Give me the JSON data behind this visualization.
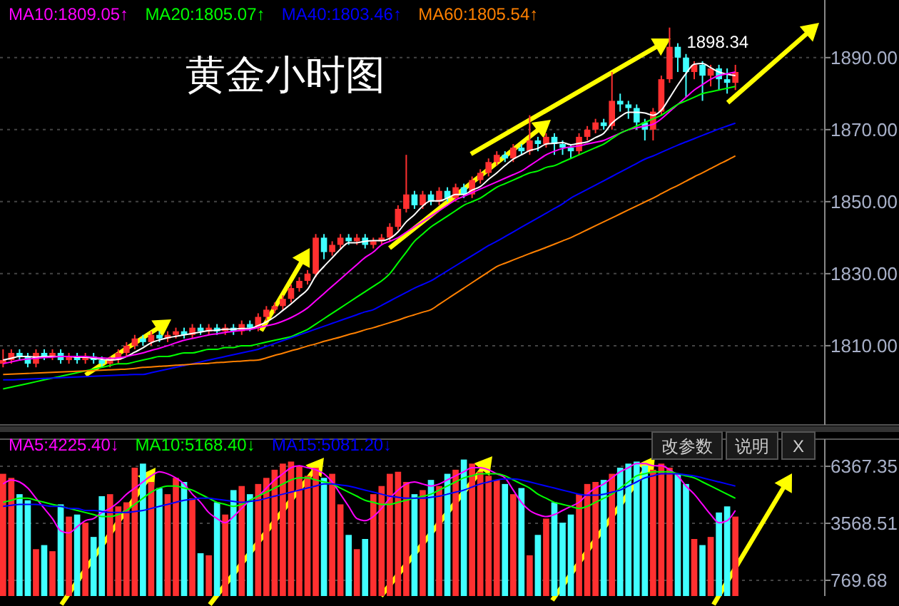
{
  "chart_data": [
    {
      "type": "candlestick",
      "title": "黄金小时图",
      "categories": [
        null,
        null,
        null,
        null,
        null,
        null,
        null,
        null,
        null,
        null,
        null,
        null,
        null,
        null,
        null,
        null,
        null,
        null,
        null,
        null,
        null,
        null,
        null,
        null,
        null,
        null,
        null,
        null,
        null,
        null,
        null,
        null,
        null,
        null,
        null,
        null,
        null,
        null,
        null,
        null,
        null,
        null,
        null,
        null,
        null,
        null,
        null,
        null,
        null,
        null,
        null,
        null,
        null,
        null,
        null,
        null,
        null,
        null,
        null,
        null,
        null,
        null,
        null,
        null,
        null,
        null,
        null,
        null,
        null,
        null,
        null,
        null,
        null,
        null,
        null,
        null,
        null,
        null,
        null,
        null,
        null,
        null,
        null,
        null,
        null,
        null,
        null,
        null,
        null,
        null
      ],
      "ohlc": [
        [
          1805,
          1809,
          1804,
          1806
        ],
        [
          1806,
          1809,
          1805,
          1808
        ],
        [
          1808,
          1809,
          1806,
          1807
        ],
        [
          1807,
          1808,
          1804,
          1805
        ],
        [
          1805,
          1809,
          1804,
          1808
        ],
        [
          1808,
          1809,
          1806,
          1807
        ],
        [
          1807,
          1809,
          1806,
          1808
        ],
        [
          1808,
          1809,
          1805,
          1806
        ],
        [
          1806,
          1808,
          1805,
          1807
        ],
        [
          1807,
          1808,
          1805,
          1806
        ],
        [
          1806,
          1808,
          1805,
          1807
        ],
        [
          1807,
          1808,
          1805,
          1806
        ],
        [
          1806,
          1807,
          1804,
          1805
        ],
        [
          1805,
          1807,
          1804,
          1806
        ],
        [
          1806,
          1809,
          1805,
          1808
        ],
        [
          1808,
          1811,
          1807,
          1810
        ],
        [
          1810,
          1813,
          1809,
          1812
        ],
        [
          1812,
          1813,
          1810,
          1811
        ],
        [
          1811,
          1814,
          1810,
          1813
        ],
        [
          1813,
          1814,
          1811,
          1812
        ],
        [
          1812,
          1814,
          1811,
          1813
        ],
        [
          1813,
          1815,
          1812,
          1814
        ],
        [
          1814,
          1815,
          1812,
          1813
        ],
        [
          1813,
          1816,
          1812,
          1815
        ],
        [
          1815,
          1816,
          1813,
          1814
        ],
        [
          1814,
          1816,
          1813,
          1815
        ],
        [
          1815,
          1816,
          1813,
          1814
        ],
        [
          1814,
          1816,
          1813,
          1815
        ],
        [
          1815,
          1816,
          1813,
          1814
        ],
        [
          1814,
          1817,
          1813,
          1816
        ],
        [
          1816,
          1817,
          1814,
          1815
        ],
        [
          1815,
          1819,
          1814,
          1818
        ],
        [
          1818,
          1821,
          1817,
          1820
        ],
        [
          1820,
          1822,
          1819,
          1821
        ],
        [
          1821,
          1824,
          1820,
          1823
        ],
        [
          1823,
          1827,
          1822,
          1826
        ],
        [
          1826,
          1829,
          1825,
          1828
        ],
        [
          1828,
          1831,
          1827,
          1830
        ],
        [
          1830,
          1841,
          1829,
          1840
        ],
        [
          1840,
          1841,
          1834,
          1836
        ],
        [
          1836,
          1839,
          1835,
          1838
        ],
        [
          1838,
          1841,
          1837,
          1840
        ],
        [
          1840,
          1841,
          1838,
          1839
        ],
        [
          1839,
          1841,
          1838,
          1840
        ],
        [
          1840,
          1841,
          1837,
          1838
        ],
        [
          1838,
          1840,
          1837,
          1839
        ],
        [
          1839,
          1841,
          1838,
          1840
        ],
        [
          1840,
          1844,
          1839,
          1843
        ],
        [
          1843,
          1849,
          1842,
          1848
        ],
        [
          1848,
          1863,
          1847,
          1852
        ],
        [
          1852,
          1853,
          1848,
          1849
        ],
        [
          1849,
          1853,
          1848,
          1852
        ],
        [
          1852,
          1853,
          1849,
          1850
        ],
        [
          1850,
          1854,
          1849,
          1853
        ],
        [
          1853,
          1854,
          1850,
          1851
        ],
        [
          1851,
          1855,
          1850,
          1854
        ],
        [
          1854,
          1855,
          1851,
          1852
        ],
        [
          1852,
          1857,
          1851,
          1856
        ],
        [
          1856,
          1859,
          1855,
          1858
        ],
        [
          1858,
          1862,
          1857,
          1861
        ],
        [
          1861,
          1864,
          1860,
          1863
        ],
        [
          1863,
          1864,
          1861,
          1862
        ],
        [
          1862,
          1866,
          1861,
          1865
        ],
        [
          1865,
          1866,
          1863,
          1864
        ],
        [
          1864,
          1874,
          1863,
          1867
        ],
        [
          1867,
          1868,
          1864,
          1866
        ],
        [
          1866,
          1869,
          1865,
          1868
        ],
        [
          1868,
          1869,
          1863,
          1866
        ],
        [
          1866,
          1867,
          1863,
          1865
        ],
        [
          1865,
          1866,
          1862,
          1864
        ],
        [
          1864,
          1869,
          1863,
          1868
        ],
        [
          1868,
          1871,
          1867,
          1870
        ],
        [
          1870,
          1873,
          1869,
          1872
        ],
        [
          1872,
          1873,
          1870,
          1871
        ],
        [
          1871,
          1886,
          1870,
          1878
        ],
        [
          1878,
          1880,
          1875,
          1877
        ],
        [
          1877,
          1878,
          1873,
          1876
        ],
        [
          1876,
          1877,
          1870,
          1872
        ],
        [
          1872,
          1873,
          1867,
          1870
        ],
        [
          1870,
          1876,
          1867,
          1875
        ],
        [
          1875,
          1885,
          1874,
          1884
        ],
        [
          1884,
          1898.34,
          1883,
          1893
        ],
        [
          1893,
          1894,
          1886,
          1890
        ],
        [
          1890,
          1891,
          1879,
          1886
        ],
        [
          1886,
          1889,
          1884,
          1888
        ],
        [
          1888,
          1889,
          1878,
          1885
        ],
        [
          1885,
          1888,
          1882,
          1887
        ],
        [
          1887,
          1888,
          1881,
          1884
        ],
        [
          1884,
          1887,
          1880,
          1883
        ],
        [
          1883,
          1888,
          1881,
          1886
        ]
      ],
      "colors": [
        "#ff3030",
        "#ff3030",
        "#40ffff",
        "#40ffff",
        "#ff3030",
        "#40ffff",
        "#ff3030",
        "#40ffff",
        "#ff3030",
        "#40ffff",
        "#ff3030",
        "#40ffff",
        "#40ffff",
        "#ff3030",
        "#ff3030",
        "#ff3030",
        "#ff3030",
        "#40ffff",
        "#ff3030",
        "#40ffff",
        "#ff3030",
        "#ff3030",
        "#40ffff",
        "#ff3030",
        "#40ffff",
        "#ff3030",
        "#40ffff",
        "#ff3030",
        "#40ffff",
        "#ff3030",
        "#40ffff",
        "#ff3030",
        "#ff3030",
        "#ff3030",
        "#ff3030",
        "#ff3030",
        "#ff3030",
        "#ff3030",
        "#ff3030",
        "#40ffff",
        "#ff3030",
        "#ff3030",
        "#40ffff",
        "#ff3030",
        "#40ffff",
        "#ff3030",
        "#ff3030",
        "#ff3030",
        "#ff3030",
        "#ff3030",
        "#40ffff",
        "#ff3030",
        "#40ffff",
        "#ff3030",
        "#40ffff",
        "#ff3030",
        "#40ffff",
        "#ff3030",
        "#ff3030",
        "#ff3030",
        "#ff3030",
        "#40ffff",
        "#ff3030",
        "#40ffff",
        "#ff3030",
        "#40ffff",
        "#ff3030",
        "#40ffff",
        "#40ffff",
        "#40ffff",
        "#ff3030",
        "#ff3030",
        "#ff3030",
        "#40ffff",
        "#ff3030",
        "#40ffff",
        "#40ffff",
        "#40ffff",
        "#40ffff",
        "#ff3030",
        "#ff3030",
        "#ff3030",
        "#40ffff",
        "#40ffff",
        "#ff3030",
        "#40ffff",
        "#ff3030",
        "#40ffff",
        "#40ffff",
        "#ff3030"
      ],
      "series": [
        {
          "type": "line",
          "color": "#ffffff",
          "values": [
            1806,
            1806.5,
            1807,
            1807,
            1806.8,
            1807,
            1807,
            1807,
            1807,
            1806.8,
            1806.8,
            1806.5,
            1806.2,
            1806,
            1806.2,
            1807,
            1808.2,
            1809.4,
            1810.8,
            1811.6,
            1812.2,
            1812.6,
            1813,
            1813.4,
            1813.8,
            1814.2,
            1814.3,
            1814.6,
            1814.6,
            1814.8,
            1814.8,
            1815.6,
            1816.6,
            1818,
            1819.8,
            1821.6,
            1823.6,
            1825.6,
            1829.4,
            1832,
            1834.4,
            1836.8,
            1838.6,
            1838.6,
            1839,
            1839.2,
            1839.2,
            1839.8,
            1841.6,
            1844.4,
            1846.4,
            1848.8,
            1850.2,
            1850.2,
            1851,
            1852,
            1852,
            1853.2,
            1854.2,
            1856.2,
            1858,
            1860,
            1861.8,
            1863,
            1864.2,
            1864.8,
            1866,
            1866.2,
            1866.4,
            1865.8,
            1866.2,
            1866.6,
            1867.8,
            1869,
            1871.8,
            1873.6,
            1874.8,
            1874.8,
            1874.6,
            1874,
            1875.4,
            1878.8,
            1882.4,
            1885.6,
            1888.2,
            1888.4,
            1887.2,
            1886,
            1885.4,
            1885
          ]
        },
        {
          "type": "line",
          "name": "MA10:1809.05↑",
          "color": "#ff00ff",
          "values": [
            1805,
            1805.5,
            1806,
            1806.3,
            1806.5,
            1806.7,
            1806.8,
            1807,
            1807,
            1807,
            1807,
            1806.8,
            1806.6,
            1806.5,
            1806.6,
            1807,
            1807.5,
            1808,
            1808.7,
            1809.3,
            1810,
            1810.8,
            1811.5,
            1812,
            1812.5,
            1813,
            1813.3,
            1813.7,
            1814,
            1814.3,
            1814.5,
            1815,
            1815.5,
            1816,
            1816.8,
            1817.8,
            1819,
            1820.5,
            1822.5,
            1824.5,
            1826.5,
            1828.5,
            1830.5,
            1832.5,
            1834.5,
            1836,
            1838,
            1839,
            1840,
            1841.5,
            1843,
            1844.5,
            1846,
            1847.5,
            1849,
            1850.5,
            1851.5,
            1852.5,
            1853.5,
            1854.5,
            1855.5,
            1856.5,
            1857.5,
            1858.5,
            1860,
            1861.5,
            1863,
            1864,
            1864.8,
            1865.2,
            1865.5,
            1866,
            1866.5,
            1867,
            1868,
            1869,
            1870,
            1870.5,
            1871,
            1871.5,
            1873,
            1875,
            1877,
            1879,
            1881,
            1882.5,
            1884,
            1885,
            1885.5,
            1886
          ]
        },
        {
          "type": "line",
          "name": "MA20:1805.07↑",
          "color": "#00ff00",
          "values": [
            1798,
            1798.5,
            1799,
            1799.5,
            1800,
            1800.5,
            1801,
            1801.5,
            1802,
            1802.5,
            1803,
            1803.5,
            1804,
            1804.5,
            1805,
            1805,
            1805.5,
            1806,
            1806.5,
            1807,
            1807,
            1807.5,
            1808,
            1808,
            1808.5,
            1809,
            1809,
            1809.5,
            1809.5,
            1810,
            1810,
            1810.5,
            1811,
            1811.5,
            1812,
            1812.5,
            1813.5,
            1814.5,
            1816,
            1817.5,
            1819,
            1820.5,
            1822,
            1823.5,
            1825,
            1826.5,
            1828,
            1830,
            1833,
            1836,
            1839,
            1841,
            1843,
            1844.5,
            1846,
            1847.5,
            1849,
            1850,
            1851,
            1852.5,
            1854,
            1855,
            1856,
            1857,
            1858,
            1858.5,
            1859.5,
            1860,
            1861,
            1862,
            1863,
            1864,
            1865,
            1866,
            1867.5,
            1869,
            1870,
            1871,
            1872,
            1873,
            1874,
            1875.5,
            1877,
            1878,
            1879,
            1880,
            1880.5,
            1881,
            1881.5,
            1882
          ]
        },
        {
          "type": "line",
          "name": "MA40:1803.46↑",
          "color": "#0000ff",
          "values": [
            1800.5,
            1800.5,
            1800.6,
            1800.7,
            1800.8,
            1800.9,
            1801,
            1801.1,
            1801.2,
            1801.3,
            1801.4,
            1801.5,
            1801.6,
            1801.7,
            1801.8,
            1801.9,
            1802,
            1802,
            1802.5,
            1803,
            1803.5,
            1804,
            1804.5,
            1805,
            1805.5,
            1806,
            1806.5,
            1807,
            1807.5,
            1808,
            1808.5,
            1809,
            1809.8,
            1810.6,
            1811.4,
            1812.2,
            1813,
            1813.8,
            1814.6,
            1815.4,
            1816.2,
            1817,
            1817.8,
            1818.6,
            1819.4,
            1820,
            1821.2,
            1822.4,
            1823.6,
            1824.8,
            1826,
            1827,
            1828,
            1829.4,
            1830.8,
            1832.2,
            1833.6,
            1835,
            1836.4,
            1837.8,
            1839,
            1840.3,
            1841.6,
            1842.9,
            1844.2,
            1845.5,
            1846.8,
            1848.1,
            1849.4,
            1851,
            1852.2,
            1853.4,
            1854.6,
            1855.8,
            1857,
            1858.2,
            1859.4,
            1860.6,
            1861.8,
            1862.7,
            1863.7,
            1864.7,
            1865.7,
            1866.6,
            1867.5,
            1868.4,
            1869.3,
            1870.2,
            1871,
            1871.8
          ]
        },
        {
          "type": "line",
          "name": "MA60:1805.54↑",
          "color": "#ff8000",
          "values": [
            1802,
            1802.1,
            1802.2,
            1802.3,
            1802.4,
            1802.5,
            1802.6,
            1802.7,
            1802.8,
            1802.9,
            1803,
            1803.1,
            1803.2,
            1803.3,
            1803.4,
            1803.5,
            1803.7,
            1804,
            1804.1,
            1804.3,
            1804.4,
            1804.6,
            1804.7,
            1804.9,
            1805,
            1805.1,
            1805.3,
            1805.4,
            1805.6,
            1805.7,
            1805.9,
            1806,
            1806.6,
            1807.3,
            1807.9,
            1808.6,
            1809.2,
            1809.9,
            1810.5,
            1811.2,
            1811.8,
            1812.4,
            1813.1,
            1813.7,
            1814.4,
            1815,
            1815.7,
            1816.4,
            1817.1,
            1817.9,
            1818.6,
            1819.3,
            1820,
            1821.5,
            1823,
            1824.5,
            1826,
            1827.5,
            1829,
            1830.5,
            1832,
            1832.9,
            1833.8,
            1834.7,
            1835.6,
            1836.4,
            1837.3,
            1838.2,
            1839.1,
            1840,
            1841.1,
            1842.2,
            1843.3,
            1844.4,
            1845.5,
            1846.6,
            1847.7,
            1848.8,
            1849.9,
            1851,
            1852.2,
            1853.4,
            1854.5,
            1855.7,
            1856.9,
            1858,
            1859.2,
            1860.4,
            1861.5,
            1862.7
          ]
        }
      ],
      "ylim": [
        1788,
        1906
      ],
      "yticks": [
        {
          "value": 1810,
          "label": "1810.00"
        },
        {
          "value": 1830,
          "label": "1830.00"
        },
        {
          "value": 1850,
          "label": "1850.00"
        },
        {
          "value": 1870,
          "label": "1870.00"
        },
        {
          "value": 1890,
          "label": "1890.00"
        }
      ],
      "grid": "y",
      "legend": "top left",
      "annotations": [
        "1898.34"
      ]
    },
    {
      "type": "bar",
      "categories": [
        null,
        null,
        null,
        null,
        null,
        null,
        null,
        null,
        null,
        null,
        null,
        null,
        null,
        null,
        null,
        null,
        null,
        null,
        null,
        null,
        null,
        null,
        null,
        null,
        null,
        null,
        null,
        null,
        null,
        null,
        null,
        null,
        null,
        null,
        null,
        null,
        null,
        null,
        null,
        null,
        null,
        null,
        null,
        null,
        null,
        null,
        null,
        null,
        null,
        null,
        null,
        null,
        null,
        null,
        null,
        null,
        null,
        null,
        null,
        null,
        null,
        null,
        null,
        null,
        null,
        null,
        null,
        null,
        null,
        null,
        null,
        null,
        null,
        null,
        null,
        null,
        null,
        null,
        null,
        null,
        null,
        null,
        null,
        null,
        null,
        null,
        null,
        null,
        null,
        null
      ],
      "values": [
        6000,
        5800,
        5000,
        4700,
        2300,
        2500,
        2200,
        4500,
        3900,
        4000,
        3600,
        2900,
        4900,
        5000,
        4400,
        4600,
        6300,
        6500,
        5600,
        5300,
        5000,
        5800,
        5600,
        4800,
        2100,
        2000,
        4600,
        4000,
        5200,
        5400,
        5000,
        5500,
        5800,
        6200,
        6500,
        6600,
        6400,
        5900,
        6300,
        5800,
        6000,
        4500,
        3000,
        2300,
        2800,
        5000,
        5400,
        6000,
        6100,
        5600,
        5000,
        5200,
        5700,
        5400,
        6000,
        6200,
        6700,
        6500,
        6100,
        5900,
        5700,
        5500,
        5000,
        5300,
        2000,
        3000,
        3800,
        4600,
        3600,
        4000,
        5000,
        5500,
        5600,
        5700,
        6000,
        6300,
        6500,
        6600,
        6400,
        6200,
        6500,
        6300,
        6000,
        5500,
        2800,
        2500,
        2900,
        4100,
        4400,
        3900
      ],
      "colors": [
        "#ff3030",
        "#ff3030",
        "#40ffff",
        "#40ffff",
        "#ff3030",
        "#40ffff",
        "#ff3030",
        "#40ffff",
        "#ff3030",
        "#40ffff",
        "#ff3030",
        "#40ffff",
        "#40ffff",
        "#ff3030",
        "#ff3030",
        "#ff3030",
        "#ff3030",
        "#40ffff",
        "#ff3030",
        "#40ffff",
        "#ff3030",
        "#ff3030",
        "#40ffff",
        "#ff3030",
        "#40ffff",
        "#ff3030",
        "#40ffff",
        "#ff3030",
        "#40ffff",
        "#ff3030",
        "#40ffff",
        "#ff3030",
        "#ff3030",
        "#ff3030",
        "#ff3030",
        "#ff3030",
        "#ff3030",
        "#ff3030",
        "#ff3030",
        "#40ffff",
        "#ff3030",
        "#ff3030",
        "#40ffff",
        "#ff3030",
        "#40ffff",
        "#ff3030",
        "#ff3030",
        "#ff3030",
        "#ff3030",
        "#ff3030",
        "#40ffff",
        "#ff3030",
        "#40ffff",
        "#ff3030",
        "#40ffff",
        "#ff3030",
        "#40ffff",
        "#ff3030",
        "#ff3030",
        "#ff3030",
        "#ff3030",
        "#40ffff",
        "#ff3030",
        "#40ffff",
        "#ff3030",
        "#40ffff",
        "#ff3030",
        "#40ffff",
        "#40ffff",
        "#40ffff",
        "#ff3030",
        "#ff3030",
        "#ff3030",
        "#40ffff",
        "#ff3030",
        "#40ffff",
        "#40ffff",
        "#40ffff",
        "#40ffff",
        "#ff3030",
        "#ff3030",
        "#ff3030",
        "#40ffff",
        "#40ffff",
        "#ff3030",
        "#40ffff",
        "#ff3030",
        "#40ffff",
        "#40ffff",
        "#ff3030"
      ],
      "series": [
        {
          "type": "line",
          "name": "MA5:4225.40↓",
          "color": "#ff00ff",
          "values": [
            5500,
            5700,
            5600,
            5300,
            4800,
            4300,
            3800,
            3200,
            3100,
            3400,
            3700,
            3800,
            4100,
            4300,
            4600,
            5000,
            5300,
            5600,
            5900,
            6100,
            6000,
            5800,
            5500,
            5000,
            4600,
            4100,
            3800,
            3600,
            3900,
            4300,
            4700,
            4900,
            5300,
            5700,
            6000,
            6300,
            6400,
            6300,
            6200,
            6000,
            5600,
            5000,
            4400,
            3800,
            3700,
            3900,
            4300,
            4800,
            5200,
            5500,
            5600,
            5500,
            5400,
            5500,
            5700,
            5900,
            6100,
            6300,
            6300,
            6200,
            6000,
            5800,
            5200,
            4600,
            4200,
            4000,
            3900,
            4000,
            4200,
            4400,
            4600,
            5000,
            5300,
            5500,
            5800,
            6100,
            6300,
            6500,
            6500,
            6400,
            6400,
            6200,
            5900,
            5400,
            5000,
            4500,
            4000,
            3600,
            3700,
            4200
          ]
        },
        {
          "type": "line",
          "name": "MA10:5168.40↓",
          "color": "#00ff00",
          "values": [
            4600,
            4700,
            4800,
            4800,
            4700,
            4600,
            4500,
            4400,
            4300,
            4200,
            4100,
            4000,
            3900,
            3900,
            4000,
            4200,
            4500,
            4800,
            5100,
            5300,
            5400,
            5400,
            5300,
            5200,
            5000,
            4800,
            4600,
            4500,
            4400,
            4500,
            4700,
            4900,
            5100,
            5300,
            5500,
            5700,
            5800,
            5800,
            5700,
            5600,
            5500,
            5300,
            5100,
            4900,
            4700,
            4600,
            4500,
            4500,
            4600,
            4700,
            4800,
            4900,
            5000,
            5200,
            5400,
            5600,
            5800,
            5900,
            6000,
            6000,
            6000,
            5900,
            5700,
            5500,
            5300,
            5000,
            4800,
            4600,
            4500,
            4400,
            4300,
            4400,
            4600,
            4800,
            5000,
            5300,
            5600,
            5900,
            6000,
            6100,
            6100,
            6100,
            6000,
            5900,
            5800,
            5600,
            5400,
            5200,
            5000,
            4800
          ]
        },
        {
          "type": "line",
          "name": "MA15:5081.20↓",
          "color": "#0000ff",
          "values": [
            4400,
            4450,
            4500,
            4500,
            4500,
            4450,
            4400,
            4400,
            4300,
            4300,
            4200,
            4200,
            4150,
            4100,
            4100,
            4100,
            4150,
            4200,
            4300,
            4400,
            4500,
            4600,
            4700,
            4750,
            4800,
            4800,
            4750,
            4700,
            4650,
            4600,
            4650,
            4700,
            4800,
            4900,
            5000,
            5100,
            5200,
            5300,
            5400,
            5500,
            5500,
            5450,
            5400,
            5300,
            5200,
            5100,
            5000,
            4900,
            4850,
            4800,
            4800,
            4800,
            4850,
            4900,
            5000,
            5100,
            5200,
            5350,
            5500,
            5600,
            5700,
            5750,
            5750,
            5700,
            5600,
            5500,
            5400,
            5300,
            5200,
            5100,
            5000,
            4950,
            4950,
            5000,
            5100,
            5200,
            5400,
            5600,
            5800,
            5900,
            6000,
            6000,
            6000,
            5950,
            5900,
            5800,
            5700,
            5600,
            5500,
            5400
          ]
        }
      ],
      "ylim": [
        0,
        7700
      ],
      "yticks": [
        769.68,
        3568.51,
        6367.35
      ],
      "grid": "y",
      "legend": "top left",
      "annotations": [
        "改参数",
        "说明",
        "X"
      ]
    }
  ]
}
